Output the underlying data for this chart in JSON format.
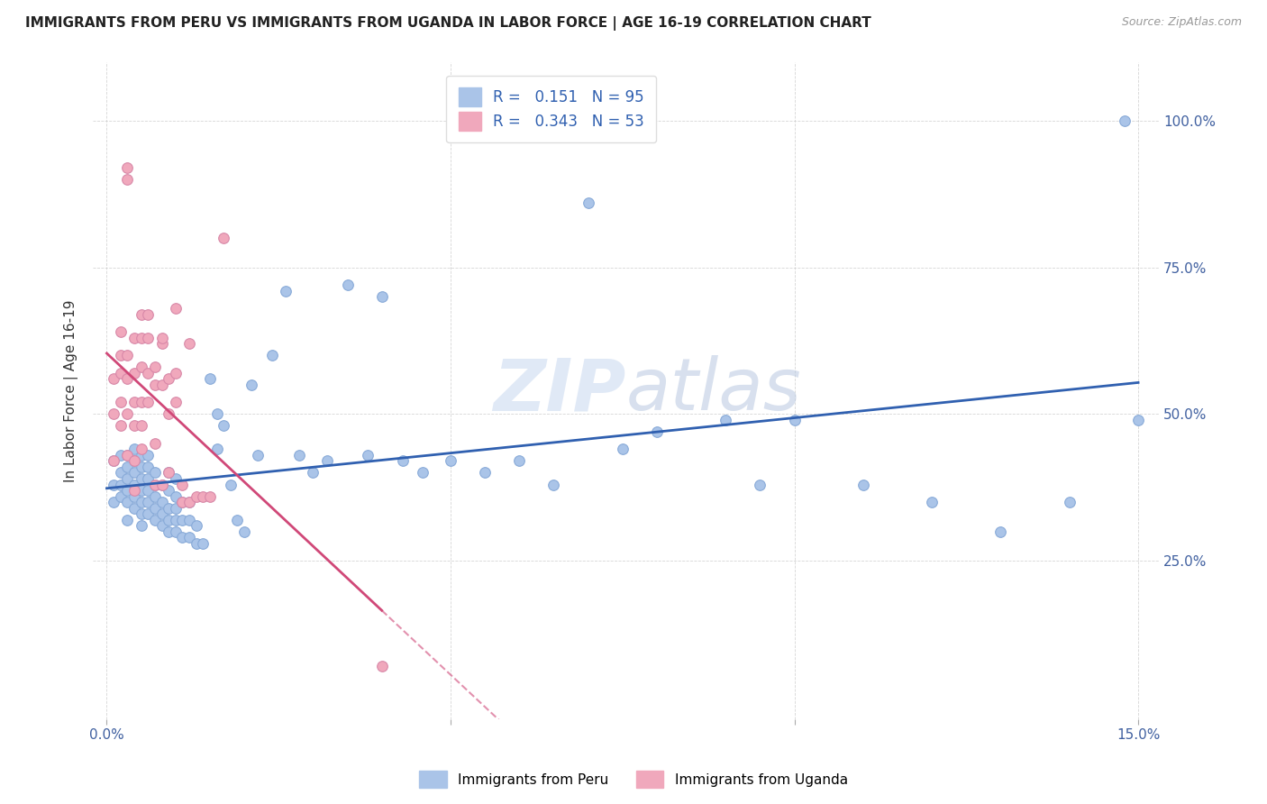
{
  "title": "IMMIGRANTS FROM PERU VS IMMIGRANTS FROM UGANDA IN LABOR FORCE | AGE 16-19 CORRELATION CHART",
  "source": "Source: ZipAtlas.com",
  "ylabel": "In Labor Force | Age 16-19",
  "xlim": [
    0.0,
    0.15
  ],
  "ylim": [
    0.0,
    1.08
  ],
  "legend_R_peru": "0.151",
  "legend_N_peru": "95",
  "legend_R_uganda": "0.343",
  "legend_N_uganda": "53",
  "color_peru": "#aac4e8",
  "color_uganda": "#f0a8bc",
  "line_color_peru": "#3060b0",
  "line_color_uganda": "#d04878",
  "watermark_color": "#c8d8f0",
  "peru_x": [
    0.001,
    0.001,
    0.001,
    0.002,
    0.002,
    0.002,
    0.002,
    0.003,
    0.003,
    0.003,
    0.003,
    0.003,
    0.003,
    0.004,
    0.004,
    0.004,
    0.004,
    0.004,
    0.004,
    0.005,
    0.005,
    0.005,
    0.005,
    0.005,
    0.005,
    0.005,
    0.006,
    0.006,
    0.006,
    0.006,
    0.006,
    0.006,
    0.007,
    0.007,
    0.007,
    0.007,
    0.007,
    0.008,
    0.008,
    0.008,
    0.008,
    0.009,
    0.009,
    0.009,
    0.009,
    0.009,
    0.01,
    0.01,
    0.01,
    0.01,
    0.01,
    0.011,
    0.011,
    0.011,
    0.012,
    0.012,
    0.012,
    0.013,
    0.013,
    0.014,
    0.015,
    0.016,
    0.016,
    0.017,
    0.018,
    0.019,
    0.02,
    0.021,
    0.022,
    0.024,
    0.026,
    0.028,
    0.03,
    0.032,
    0.035,
    0.038,
    0.04,
    0.043,
    0.046,
    0.05,
    0.055,
    0.06,
    0.065,
    0.07,
    0.075,
    0.08,
    0.09,
    0.095,
    0.1,
    0.11,
    0.12,
    0.13,
    0.14,
    0.148,
    0.15
  ],
  "peru_y": [
    0.35,
    0.38,
    0.42,
    0.36,
    0.38,
    0.4,
    0.43,
    0.35,
    0.37,
    0.39,
    0.41,
    0.43,
    0.32,
    0.34,
    0.36,
    0.38,
    0.4,
    0.42,
    0.44,
    0.33,
    0.35,
    0.37,
    0.39,
    0.41,
    0.43,
    0.31,
    0.33,
    0.35,
    0.37,
    0.39,
    0.41,
    0.43,
    0.32,
    0.34,
    0.36,
    0.38,
    0.4,
    0.31,
    0.33,
    0.35,
    0.38,
    0.3,
    0.32,
    0.34,
    0.37,
    0.4,
    0.3,
    0.32,
    0.34,
    0.36,
    0.39,
    0.29,
    0.32,
    0.35,
    0.29,
    0.32,
    0.35,
    0.28,
    0.31,
    0.28,
    0.56,
    0.44,
    0.5,
    0.48,
    0.38,
    0.32,
    0.3,
    0.55,
    0.43,
    0.6,
    0.71,
    0.43,
    0.4,
    0.42,
    0.72,
    0.43,
    0.7,
    0.42,
    0.4,
    0.42,
    0.4,
    0.42,
    0.38,
    0.86,
    0.44,
    0.47,
    0.49,
    0.38,
    0.49,
    0.38,
    0.35,
    0.3,
    0.35,
    1.0,
    0.49
  ],
  "uganda_x": [
    0.001,
    0.001,
    0.001,
    0.002,
    0.002,
    0.002,
    0.002,
    0.002,
    0.003,
    0.003,
    0.003,
    0.003,
    0.003,
    0.003,
    0.004,
    0.004,
    0.004,
    0.004,
    0.004,
    0.004,
    0.005,
    0.005,
    0.005,
    0.005,
    0.005,
    0.005,
    0.006,
    0.006,
    0.006,
    0.006,
    0.007,
    0.007,
    0.007,
    0.007,
    0.008,
    0.008,
    0.008,
    0.008,
    0.009,
    0.009,
    0.009,
    0.01,
    0.01,
    0.01,
    0.011,
    0.011,
    0.012,
    0.012,
    0.013,
    0.014,
    0.015,
    0.017,
    0.04
  ],
  "uganda_y": [
    0.42,
    0.5,
    0.56,
    0.6,
    0.48,
    0.52,
    0.64,
    0.57,
    0.92,
    0.9,
    0.6,
    0.56,
    0.5,
    0.43,
    0.63,
    0.57,
    0.52,
    0.48,
    0.42,
    0.37,
    0.63,
    0.58,
    0.52,
    0.48,
    0.67,
    0.44,
    0.63,
    0.57,
    0.52,
    0.67,
    0.55,
    0.58,
    0.45,
    0.38,
    0.62,
    0.55,
    0.63,
    0.38,
    0.56,
    0.5,
    0.4,
    0.57,
    0.52,
    0.68,
    0.38,
    0.35,
    0.35,
    0.62,
    0.36,
    0.36,
    0.36,
    0.8,
    0.07
  ]
}
